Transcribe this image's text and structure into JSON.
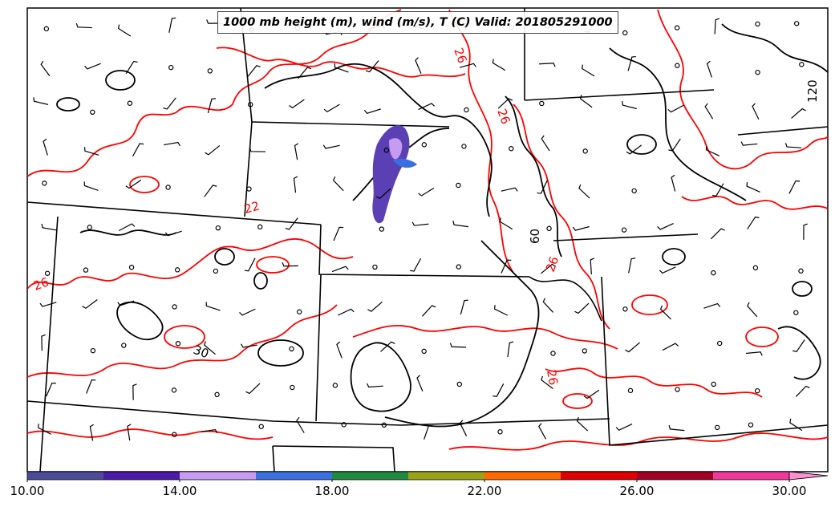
{
  "title": "1000 mb height (m), wind (m/s), T (C) Valid: 201805291000",
  "colorbar": {
    "tick_labels": [
      "10.00",
      "14.00",
      "18.00",
      "22.00",
      "26.00",
      "30.00"
    ],
    "tick_values": [
      10,
      14,
      18,
      22,
      26,
      30
    ],
    "range": [
      10,
      31
    ],
    "colors": [
      "#4b4b9a",
      "#4a1aa8",
      "#c79bf2",
      "#3a6fe0",
      "#1f8a3f",
      "#9aa317",
      "#ff6a00",
      "#e00000",
      "#a30024",
      "#f03a9a",
      "#ff8fd0"
    ]
  },
  "contour_labels": {
    "temperature": [
      "26",
      "22",
      "26",
      "26",
      "30",
      "26",
      "26"
    ],
    "height": [
      "120",
      "60"
    ]
  },
  "colors": {
    "height_contour": "#000000",
    "temperature_contour": "#ff0000",
    "state_borders": "#000000",
    "precip_shading": "#5b3fb5"
  }
}
